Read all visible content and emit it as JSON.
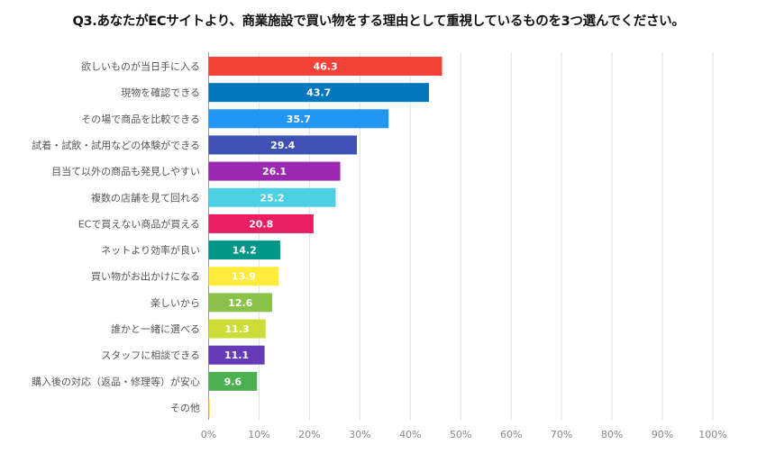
{
  "chart_data": {
    "type": "bar",
    "orientation": "horizontal",
    "title": "Q3.あなたがECサイトより、商業施設で買い物をする理由として重視しているものを3つ選んでください。",
    "categories": [
      "欲しいものが当日手に入る",
      "現物を確認できる",
      "その場で商品を比較できる",
      "試着・試飲・試用などの体験ができる",
      "目当て以外の商品も発見しやすい",
      "複数の店舗を見て回れる",
      "ECで買えない商品が買える",
      "ネットより効率が良い",
      "買い物がお出かけになる",
      "楽しいから",
      "誰かと一緒に選べる",
      "スタッフに相談できる",
      "購入後の対応（返品・修理等）が安心",
      "その他"
    ],
    "values": [
      46.3,
      43.7,
      35.7,
      29.4,
      26.1,
      25.2,
      20.8,
      14.2,
      13.9,
      12.6,
      11.3,
      11.1,
      9.6,
      0.1
    ],
    "data_labels": [
      "46.3",
      "43.7",
      "35.7",
      "29.4",
      "26.1",
      "25.2",
      "20.8",
      "14.2",
      "13.9",
      "12.6",
      "11.3",
      "11.1",
      "9.6",
      ""
    ],
    "colors": [
      "#f44336",
      "#0277bd",
      "#2196f3",
      "#3f51b5",
      "#9c27b0",
      "#4dd0e1",
      "#e91e63",
      "#009688",
      "#ffeb3b",
      "#8bc34a",
      "#cddc39",
      "#673ab7",
      "#4caf50",
      "#ffc107"
    ],
    "xlim": [
      0,
      100
    ],
    "xticks": [
      "0%",
      "10%",
      "20%",
      "30%",
      "40%",
      "50%",
      "60%",
      "70%",
      "80%",
      "90%",
      "100%"
    ],
    "grid": true,
    "xlabel": "",
    "ylabel": ""
  }
}
